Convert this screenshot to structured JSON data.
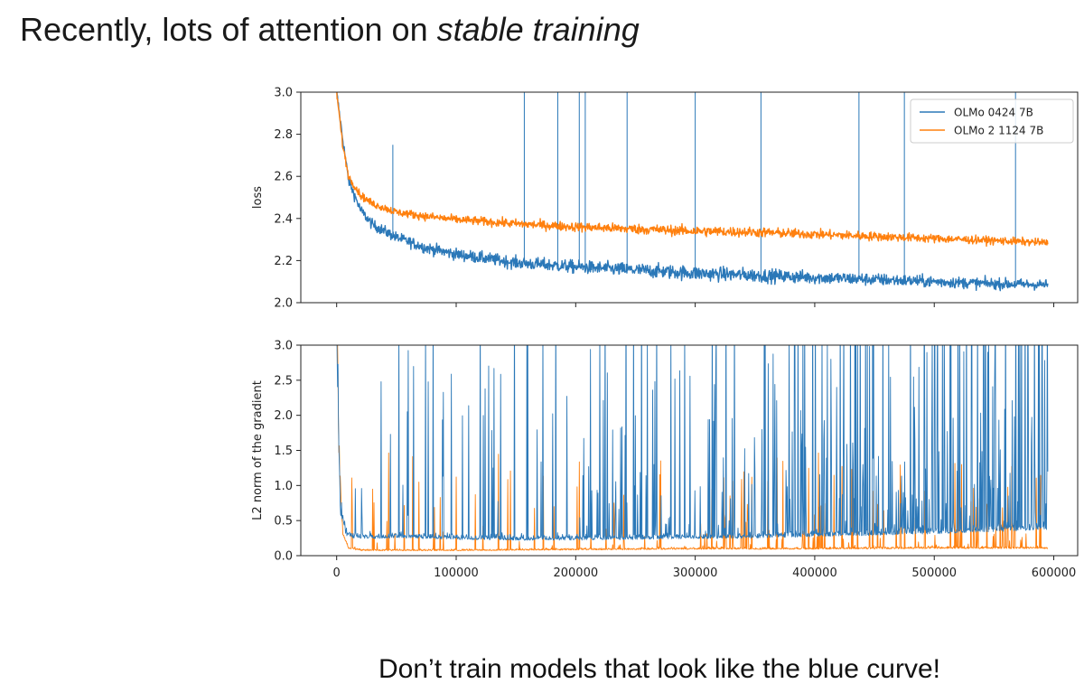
{
  "slide": {
    "title_prefix": "Recently, lots of attention on ",
    "title_emphasis": "stable training",
    "caption": "Don’t train models that look like the blue curve!"
  },
  "colors": {
    "blue": "#2b78b8",
    "orange": "#ff800e",
    "legend_border": "#cccccc",
    "axes": "#222222"
  },
  "chart_data": [
    {
      "type": "line",
      "title": "",
      "xlabel": "",
      "ylabel": "loss",
      "xlim": [
        -30000,
        620000
      ],
      "ylim": [
        2.0,
        3.0
      ],
      "yticks": [
        2.0,
        2.2,
        2.4,
        2.6,
        2.8,
        3.0
      ],
      "ytick_labels": [
        "2.0",
        "2.2",
        "2.4",
        "2.6",
        "2.8",
        "3.0"
      ],
      "xticks": [
        0,
        100000,
        200000,
        300000,
        400000,
        500000,
        600000
      ],
      "legend": "top-right",
      "grid": false,
      "series": [
        {
          "name": "OLMo 0424 7B",
          "color": "blue",
          "x": [
            0,
            5000,
            10000,
            20000,
            30000,
            50000,
            75000,
            100000,
            150000,
            200000,
            250000,
            300000,
            350000,
            400000,
            450000,
            500000,
            550000,
            595000
          ],
          "values": [
            3.0,
            2.78,
            2.58,
            2.44,
            2.37,
            2.31,
            2.26,
            2.23,
            2.19,
            2.17,
            2.155,
            2.14,
            2.13,
            2.12,
            2.11,
            2.1,
            2.09,
            2.085
          ],
          "noise": 0.025,
          "spikes": [
            {
              "x": 47000,
              "y": 2.75
            },
            {
              "x": 157000,
              "y": 3.0
            },
            {
              "x": 185000,
              "y": 3.0
            },
            {
              "x": 203000,
              "y": 3.0
            },
            {
              "x": 208000,
              "y": 3.0
            },
            {
              "x": 243000,
              "y": 3.0
            },
            {
              "x": 300000,
              "y": 3.0
            },
            {
              "x": 355000,
              "y": 3.0
            },
            {
              "x": 437000,
              "y": 3.0
            },
            {
              "x": 475000,
              "y": 3.0
            },
            {
              "x": 568000,
              "y": 3.0
            }
          ]
        },
        {
          "name": "OLMo 2 1124 7B",
          "color": "orange",
          "x": [
            0,
            5000,
            10000,
            20000,
            30000,
            50000,
            75000,
            100000,
            150000,
            200000,
            250000,
            300000,
            350000,
            400000,
            450000,
            500000,
            550000,
            595000
          ],
          "values": [
            3.0,
            2.75,
            2.6,
            2.51,
            2.47,
            2.43,
            2.41,
            2.395,
            2.375,
            2.36,
            2.35,
            2.34,
            2.335,
            2.325,
            2.315,
            2.305,
            2.295,
            2.285
          ],
          "noise": 0.018,
          "spikes": []
        }
      ]
    },
    {
      "type": "line",
      "title": "",
      "xlabel": "",
      "ylabel": "L2 norm of the gradient",
      "xlim": [
        -30000,
        620000
      ],
      "ylim": [
        0.0,
        3.0
      ],
      "yticks": [
        0.0,
        0.5,
        1.0,
        1.5,
        2.0,
        2.5,
        3.0
      ],
      "ytick_labels": [
        "0.0",
        "0.5",
        "1.0",
        "1.5",
        "2.0",
        "2.5",
        "3.0"
      ],
      "xticks": [
        0,
        100000,
        200000,
        300000,
        400000,
        500000,
        600000
      ],
      "xtick_labels": [
        "0",
        "100000",
        "200000",
        "300000",
        "400000",
        "500000",
        "600000"
      ],
      "grid": false,
      "series": [
        {
          "name": "OLMo 0424 7B",
          "color": "blue",
          "x": [
            0,
            3000,
            8000,
            15000,
            50000,
            100000,
            150000,
            200000,
            250000,
            300000,
            350000,
            400000,
            450000,
            500000,
            550000,
            595000
          ],
          "values": [
            3.0,
            0.6,
            0.28,
            0.24,
            0.25,
            0.23,
            0.22,
            0.22,
            0.23,
            0.24,
            0.25,
            0.27,
            0.29,
            0.31,
            0.34,
            0.37
          ],
          "spike_density_start": 0.01,
          "spike_density_end": 0.11
        },
        {
          "name": "OLMo 2 1124 7B",
          "color": "orange",
          "x": [
            0,
            2000,
            5000,
            10000,
            20000,
            100000,
            200000,
            300000,
            400000,
            500000,
            595000
          ],
          "values": [
            3.0,
            1.2,
            0.3,
            0.1,
            0.07,
            0.07,
            0.08,
            0.09,
            0.09,
            0.1,
            0.1
          ],
          "spike_density_start": 0.005,
          "spike_density_end": 0.05
        }
      ]
    }
  ]
}
